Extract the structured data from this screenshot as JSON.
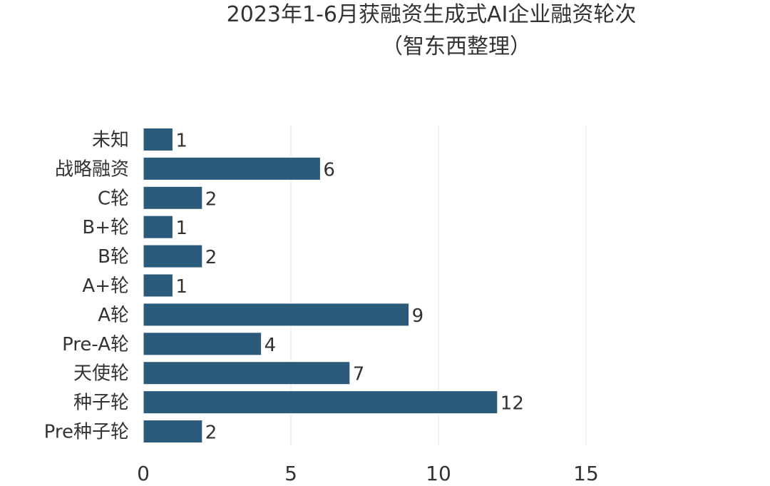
{
  "chart_data": {
    "type": "bar",
    "orientation": "horizontal",
    "title": "2023年1-6月获融资生成式AI企业融资轮次",
    "subtitle": "（智东西整理）",
    "categories": [
      "未知",
      "战略融资",
      "C轮",
      "B+轮",
      "B轮",
      "A+轮",
      "A轮",
      "Pre-A轮",
      "天使轮",
      "种子轮",
      "Pre种子轮"
    ],
    "values": [
      1,
      6,
      2,
      1,
      2,
      1,
      9,
      4,
      7,
      12,
      2
    ],
    "xlim": [
      0,
      15
    ],
    "xticks": [
      "0",
      "5",
      "10",
      "15"
    ],
    "grid": true,
    "bar_color": "#2b5a7a"
  }
}
